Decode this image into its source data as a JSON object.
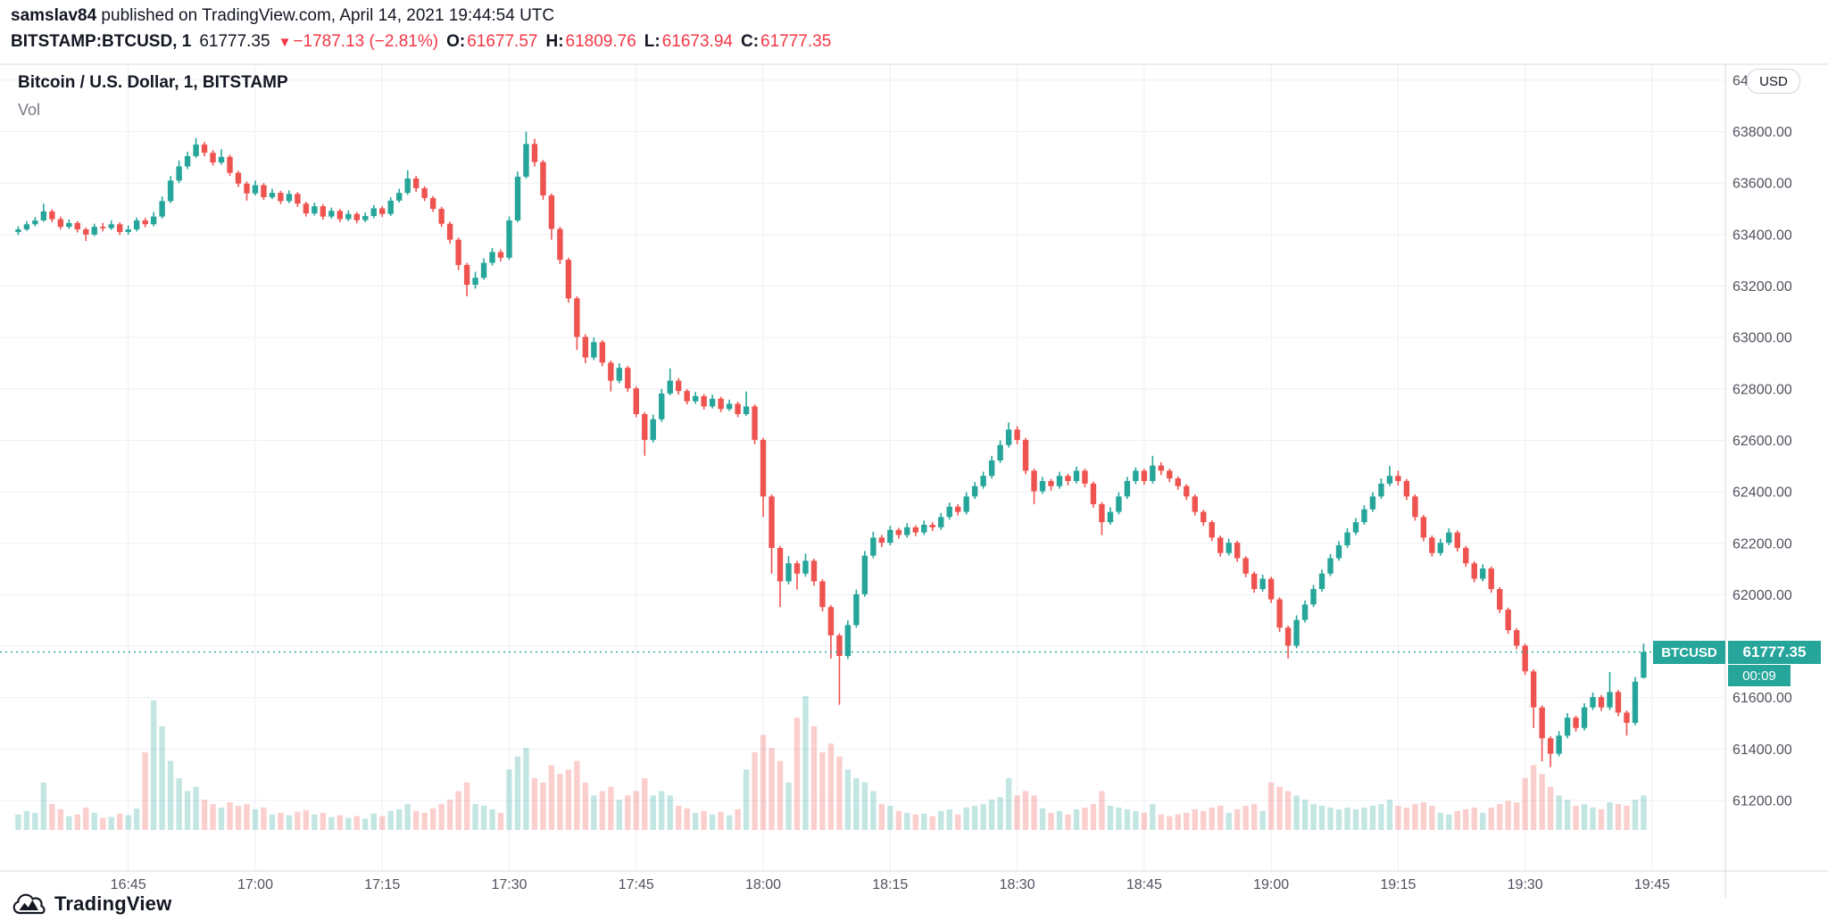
{
  "meta": {
    "attribution_user": "samslav84",
    "attribution_rest": " published on TradingView.com, April 14, 2021 19:44:54 UTC"
  },
  "quote_bar": {
    "symbol": "BITSTAMP:BTCUSD, 1",
    "last": "61777.35",
    "direction_icon": "▼",
    "change": "−1787.13 (−2.81%)",
    "o_label": "O:",
    "o": "61677.57",
    "h_label": "H:",
    "h": "61809.76",
    "l_label": "L:",
    "l": "61673.94",
    "c_label": "C:",
    "c": "61777.35"
  },
  "legend": {
    "title": "Bitcoin / U.S. Dollar, 1, BITSTAMP",
    "vol_label": "Vol"
  },
  "axis": {
    "currency_button": "USD",
    "price_labels": [
      "64000.00",
      "63800.00",
      "63600.00",
      "63400.00",
      "63200.00",
      "63000.00",
      "62800.00",
      "62600.00",
      "62400.00",
      "62200.00",
      "62000.00",
      "61800.00",
      "61600.00",
      "61400.00",
      "61200.00"
    ],
    "time_labels": [
      "16:45",
      "17:00",
      "17:15",
      "17:30",
      "17:45",
      "18:00",
      "18:15",
      "18:30",
      "18:45",
      "19:00",
      "19:15",
      "19:30",
      "19:45"
    ]
  },
  "price_line": {
    "symbol_label": "BTCUSD",
    "price_label": "61777.35",
    "countdown": "00:09",
    "value": 61777.35
  },
  "footer": {
    "brand": "TradingView"
  },
  "colors": {
    "up": "#26a69a",
    "down": "#ef5350",
    "text_red": "#f23645",
    "dark": "#131722",
    "gray": "#787b86",
    "grid": "#eceff5",
    "axis_line": "#d6d8de",
    "vol_up": "rgba(38,166,154,0.28)",
    "vol_down": "rgba(239,83,80,0.28)"
  },
  "chart_data": {
    "type": "candlestick+volume",
    "title": "Bitcoin / U.S. Dollar, 1, BITSTAMP",
    "symbol": "BITSTAMP:BTCUSD",
    "interval_minutes": 1,
    "start_time": "16:32",
    "end_time": "19:44",
    "xlim": [
      "16:30",
      "19:54"
    ],
    "ylim": [
      60926,
      64062
    ],
    "price_gridline_step": 200,
    "last_close": 61777.35,
    "candle_format": [
      "open",
      "high",
      "low",
      "close",
      "volume"
    ],
    "candles": [
      [
        63410,
        63432,
        63398,
        63420,
        18
      ],
      [
        63420,
        63452,
        63414,
        63440,
        22
      ],
      [
        63440,
        63468,
        63432,
        63455,
        20
      ],
      [
        63455,
        63520,
        63450,
        63490,
        55
      ],
      [
        63490,
        63498,
        63448,
        63460,
        30
      ],
      [
        63460,
        63470,
        63420,
        63430,
        24
      ],
      [
        63430,
        63458,
        63422,
        63445,
        16
      ],
      [
        63445,
        63452,
        63408,
        63420,
        18
      ],
      [
        63420,
        63428,
        63375,
        63400,
        26
      ],
      [
        63400,
        63442,
        63394,
        63430,
        20
      ],
      [
        63430,
        63445,
        63412,
        63425,
        14
      ],
      [
        63425,
        63455,
        63418,
        63440,
        15
      ],
      [
        63440,
        63448,
        63398,
        63410,
        19
      ],
      [
        63410,
        63436,
        63400,
        63420,
        17
      ],
      [
        63420,
        63466,
        63412,
        63455,
        25
      ],
      [
        63455,
        63465,
        63428,
        63440,
        90
      ],
      [
        63440,
        63488,
        63432,
        63470,
        150
      ],
      [
        63470,
        63548,
        63462,
        63530,
        120
      ],
      [
        63530,
        63628,
        63522,
        63610,
        80
      ],
      [
        63610,
        63688,
        63600,
        63665,
        60
      ],
      [
        63665,
        63722,
        63655,
        63705,
        45
      ],
      [
        63705,
        63775,
        63698,
        63750,
        50
      ],
      [
        63750,
        63760,
        63704,
        63718,
        35
      ],
      [
        63718,
        63728,
        63668,
        63680,
        30
      ],
      [
        63680,
        63732,
        63672,
        63702,
        26
      ],
      [
        63702,
        63710,
        63628,
        63640,
        32
      ],
      [
        63640,
        63648,
        63585,
        63598,
        28
      ],
      [
        63598,
        63606,
        63532,
        63560,
        30
      ],
      [
        63560,
        63610,
        63552,
        63592,
        24
      ],
      [
        63592,
        63600,
        63535,
        63545,
        26
      ],
      [
        63545,
        63578,
        63538,
        63562,
        18
      ],
      [
        63562,
        63570,
        63518,
        63530,
        20
      ],
      [
        63530,
        63572,
        63522,
        63558,
        17
      ],
      [
        63558,
        63565,
        63508,
        63520,
        21
      ],
      [
        63520,
        63528,
        63470,
        63482,
        23
      ],
      [
        63482,
        63524,
        63474,
        63510,
        18
      ],
      [
        63510,
        63518,
        63458,
        63470,
        20
      ],
      [
        63470,
        63505,
        63462,
        63492,
        15
      ],
      [
        63492,
        63500,
        63448,
        63460,
        17
      ],
      [
        63460,
        63494,
        63452,
        63480,
        14
      ],
      [
        63480,
        63488,
        63444,
        63456,
        16
      ],
      [
        63456,
        63486,
        63448,
        63472,
        13
      ],
      [
        63472,
        63515,
        63464,
        63502,
        19
      ],
      [
        63502,
        63510,
        63468,
        63480,
        16
      ],
      [
        63480,
        63545,
        63472,
        63532,
        22
      ],
      [
        63532,
        63578,
        63524,
        63562,
        24
      ],
      [
        63562,
        63650,
        63554,
        63618,
        30
      ],
      [
        63618,
        63628,
        63566,
        63580,
        22
      ],
      [
        63580,
        63588,
        63530,
        63542,
        20
      ],
      [
        63542,
        63550,
        63488,
        63500,
        25
      ],
      [
        63500,
        63508,
        63430,
        63442,
        30
      ],
      [
        63442,
        63450,
        63365,
        63380,
        35
      ],
      [
        63380,
        63388,
        63262,
        63282,
        45
      ],
      [
        63282,
        63290,
        63160,
        63205,
        55
      ],
      [
        63205,
        63255,
        63190,
        63232,
        30
      ],
      [
        63232,
        63308,
        63224,
        63290,
        28
      ],
      [
        63290,
        63348,
        63280,
        63332,
        24
      ],
      [
        63332,
        63342,
        63295,
        63310,
        20
      ],
      [
        63310,
        63470,
        63302,
        63455,
        70
      ],
      [
        63455,
        63645,
        63448,
        63625,
        85
      ],
      [
        63625,
        63800,
        63618,
        63752,
        95
      ],
      [
        63752,
        63772,
        63665,
        63682,
        60
      ],
      [
        63682,
        63690,
        63535,
        63552,
        55
      ],
      [
        63552,
        63560,
        63380,
        63422,
        75
      ],
      [
        63422,
        63430,
        63285,
        63302,
        65
      ],
      [
        63302,
        63310,
        63135,
        63152,
        70
      ],
      [
        63152,
        63160,
        62952,
        63002,
        80
      ],
      [
        63002,
        63012,
        62900,
        62922,
        55
      ],
      [
        62922,
        63000,
        62912,
        62982,
        40
      ],
      [
        62982,
        62990,
        62888,
        62902,
        45
      ],
      [
        62902,
        62910,
        62790,
        62832,
        50
      ],
      [
        62832,
        62900,
        62822,
        62882,
        35
      ],
      [
        62882,
        62890,
        62788,
        62802,
        40
      ],
      [
        62802,
        62810,
        62690,
        62702,
        45
      ],
      [
        62702,
        62710,
        62540,
        62602,
        60
      ],
      [
        62602,
        62700,
        62592,
        62682,
        40
      ],
      [
        62682,
        62800,
        62672,
        62782,
        45
      ],
      [
        62782,
        62880,
        62775,
        62832,
        40
      ],
      [
        62832,
        62842,
        62778,
        62792,
        28
      ],
      [
        62792,
        62800,
        62740,
        62752,
        25
      ],
      [
        62752,
        62788,
        62742,
        62772,
        20
      ],
      [
        62772,
        62780,
        62720,
        62732,
        22
      ],
      [
        62732,
        62778,
        62724,
        62762,
        18
      ],
      [
        62762,
        62770,
        62710,
        62722,
        21
      ],
      [
        62722,
        62758,
        62714,
        62742,
        17
      ],
      [
        62742,
        62750,
        62690,
        62702,
        24
      ],
      [
        62702,
        62790,
        62695,
        62732,
        70
      ],
      [
        62732,
        62740,
        62585,
        62602,
        90
      ],
      [
        62602,
        62610,
        62302,
        62382,
        110
      ],
      [
        62382,
        62390,
        62082,
        62182,
        95
      ],
      [
        62182,
        62190,
        61952,
        62052,
        80
      ],
      [
        62052,
        62150,
        62040,
        62122,
        55
      ],
      [
        62122,
        62132,
        62020,
        62082,
        130
      ],
      [
        62082,
        62160,
        62070,
        62132,
        155
      ],
      [
        62132,
        62140,
        62035,
        62052,
        120
      ],
      [
        62052,
        62060,
        61935,
        61952,
        90
      ],
      [
        61952,
        61960,
        61752,
        61842,
        100
      ],
      [
        61842,
        61850,
        61572,
        61762,
        85
      ],
      [
        61762,
        61900,
        61750,
        61882,
        70
      ],
      [
        61882,
        62020,
        61872,
        62002,
        60
      ],
      [
        62002,
        62170,
        61992,
        62152,
        55
      ],
      [
        62152,
        62245,
        62142,
        62222,
        45
      ],
      [
        62222,
        62232,
        62185,
        62202,
        30
      ],
      [
        62202,
        62268,
        62192,
        62252,
        28
      ],
      [
        62252,
        62260,
        62218,
        62232,
        22
      ],
      [
        62232,
        62278,
        62222,
        62262,
        20
      ],
      [
        62262,
        62270,
        62228,
        62242,
        18
      ],
      [
        62242,
        62288,
        62232,
        62272,
        19
      ],
      [
        62272,
        62282,
        62248,
        62262,
        16
      ],
      [
        62262,
        62318,
        62252,
        62302,
        22
      ],
      [
        62302,
        62358,
        62292,
        62342,
        24
      ],
      [
        62342,
        62352,
        62308,
        62322,
        18
      ],
      [
        62322,
        62398,
        62312,
        62382,
        26
      ],
      [
        62382,
        62438,
        62372,
        62422,
        28
      ],
      [
        62422,
        62478,
        62412,
        62462,
        30
      ],
      [
        62462,
        62540,
        62452,
        62522,
        35
      ],
      [
        62522,
        62600,
        62512,
        62582,
        38
      ],
      [
        62582,
        62670,
        62572,
        62642,
        60
      ],
      [
        62642,
        62655,
        62585,
        62602,
        40
      ],
      [
        62602,
        62610,
        62468,
        62482,
        45
      ],
      [
        62482,
        62490,
        62352,
        62402,
        40
      ],
      [
        62402,
        62458,
        62392,
        62442,
        25
      ],
      [
        62442,
        62450,
        62405,
        62422,
        20
      ],
      [
        62422,
        62478,
        62412,
        62462,
        22
      ],
      [
        62462,
        62470,
        62425,
        62442,
        18
      ],
      [
        62442,
        62498,
        62432,
        62482,
        24
      ],
      [
        62482,
        62490,
        62418,
        62432,
        26
      ],
      [
        62432,
        62440,
        62338,
        62352,
        30
      ],
      [
        62352,
        62360,
        62232,
        62282,
        45
      ],
      [
        62282,
        62340,
        62272,
        62322,
        28
      ],
      [
        62322,
        62398,
        62312,
        62382,
        26
      ],
      [
        62382,
        62458,
        62372,
        62442,
        24
      ],
      [
        62442,
        62495,
        62430,
        62482,
        22
      ],
      [
        62482,
        62490,
        62428,
        62442,
        20
      ],
      [
        62442,
        62540,
        62432,
        62502,
        30
      ],
      [
        62502,
        62515,
        62465,
        62482,
        18
      ],
      [
        62482,
        62490,
        62438,
        62452,
        16
      ],
      [
        62452,
        62460,
        62408,
        62422,
        18
      ],
      [
        62422,
        62430,
        62368,
        62382,
        20
      ],
      [
        62382,
        62390,
        62308,
        62322,
        24
      ],
      [
        62322,
        62330,
        62268,
        62282,
        22
      ],
      [
        62282,
        62290,
        62208,
        62222,
        26
      ],
      [
        62222,
        62230,
        62148,
        62162,
        28
      ],
      [
        62162,
        62218,
        62152,
        62202,
        20
      ],
      [
        62202,
        62210,
        62128,
        62142,
        24
      ],
      [
        62142,
        62150,
        62068,
        62082,
        28
      ],
      [
        62082,
        62090,
        62008,
        62022,
        30
      ],
      [
        62022,
        62078,
        62012,
        62062,
        22
      ],
      [
        62062,
        62070,
        61968,
        61982,
        55
      ],
      [
        61982,
        61990,
        61855,
        61872,
        50
      ],
      [
        61872,
        61880,
        61752,
        61802,
        45
      ],
      [
        61802,
        61920,
        61792,
        61902,
        40
      ],
      [
        61902,
        61978,
        61892,
        61962,
        35
      ],
      [
        61962,
        62038,
        61952,
        62022,
        30
      ],
      [
        62022,
        62098,
        62012,
        62082,
        28
      ],
      [
        62082,
        62158,
        62072,
        62142,
        26
      ],
      [
        62142,
        62208,
        62132,
        62192,
        24
      ],
      [
        62192,
        62258,
        62182,
        62242,
        26
      ],
      [
        62242,
        62298,
        62232,
        62282,
        24
      ],
      [
        62282,
        62348,
        62272,
        62332,
        26
      ],
      [
        62332,
        62398,
        62322,
        62382,
        28
      ],
      [
        62382,
        62452,
        62372,
        62432,
        30
      ],
      [
        62432,
        62500,
        62422,
        62462,
        35
      ],
      [
        62462,
        62482,
        62425,
        62442,
        28
      ],
      [
        62442,
        62450,
        62368,
        62382,
        26
      ],
      [
        62382,
        62390,
        62288,
        62302,
        30
      ],
      [
        62302,
        62310,
        62208,
        62222,
        32
      ],
      [
        62222,
        62230,
        62148,
        62162,
        28
      ],
      [
        62162,
        62218,
        62152,
        62202,
        20
      ],
      [
        62202,
        62258,
        62192,
        62242,
        18
      ],
      [
        62242,
        62250,
        62168,
        62182,
        22
      ],
      [
        62182,
        62190,
        62108,
        62122,
        24
      ],
      [
        62122,
        62130,
        62048,
        62062,
        26
      ],
      [
        62062,
        62118,
        62052,
        62102,
        20
      ],
      [
        62102,
        62110,
        62008,
        62022,
        26
      ],
      [
        62022,
        62030,
        61928,
        61942,
        30
      ],
      [
        61942,
        61950,
        61848,
        61862,
        34
      ],
      [
        61862,
        61870,
        61788,
        61802,
        32
      ],
      [
        61802,
        61810,
        61688,
        61702,
        60
      ],
      [
        61702,
        61710,
        61482,
        61562,
        75
      ],
      [
        61562,
        61570,
        61352,
        61442,
        65
      ],
      [
        61442,
        61450,
        61330,
        61382,
        50
      ],
      [
        61382,
        61470,
        61372,
        61452,
        40
      ],
      [
        61452,
        61540,
        61442,
        61522,
        35
      ],
      [
        61522,
        61530,
        61468,
        61482,
        28
      ],
      [
        61482,
        61578,
        61472,
        61562,
        30
      ],
      [
        61562,
        61620,
        61552,
        61602,
        26
      ],
      [
        61602,
        61610,
        61548,
        61562,
        24
      ],
      [
        61562,
        61700,
        61552,
        61622,
        32
      ],
      [
        61622,
        61630,
        61528,
        61542,
        30
      ],
      [
        61542,
        61550,
        61452,
        61502,
        28
      ],
      [
        61502,
        61680,
        61492,
        61662,
        35
      ],
      [
        61677.57,
        61809.76,
        61673.94,
        61777.35,
        40
      ]
    ]
  }
}
